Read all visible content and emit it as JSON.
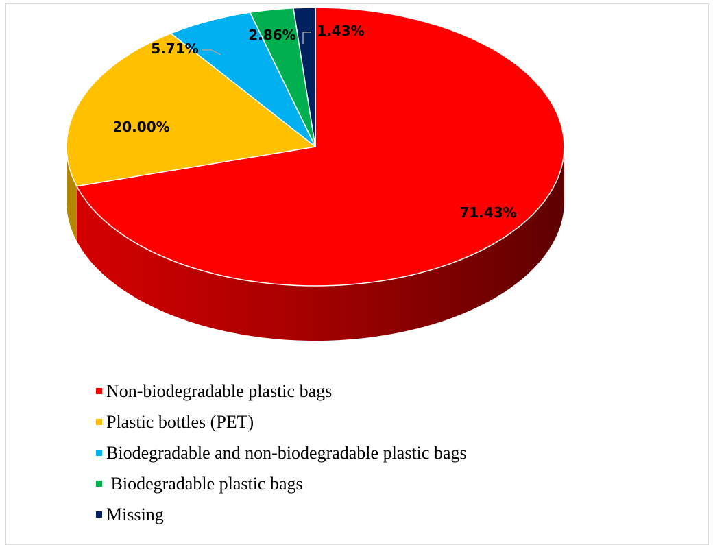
{
  "chart_data": {
    "type": "pie",
    "three_d": true,
    "legend_position": "bottom",
    "slices": [
      {
        "label": "Non-biodegradable plastic bags",
        "value": 71.43,
        "data_label": "71.43%",
        "color": "#ff0000",
        "side_color": "#c00000"
      },
      {
        "label": "Plastic bottles (PET)",
        "value": 20.0,
        "data_label": "20.00%",
        "color": "#ffc000",
        "side_color": "#b38600"
      },
      {
        "label": "Biodegradable and non-biodegradable plastic bags",
        "value": 5.71,
        "data_label": "5.71%",
        "color": "#00b0f0",
        "side_color": "#0079a8"
      },
      {
        "label": " Biodegradable plastic bags",
        "value": 2.86,
        "data_label": "2.86%",
        "color": "#00b050",
        "side_color": "#007a38"
      },
      {
        "label": "Missing",
        "value": 1.43,
        "data_label": "1.43%",
        "color": "#002060",
        "side_color": "#001030"
      }
    ]
  }
}
